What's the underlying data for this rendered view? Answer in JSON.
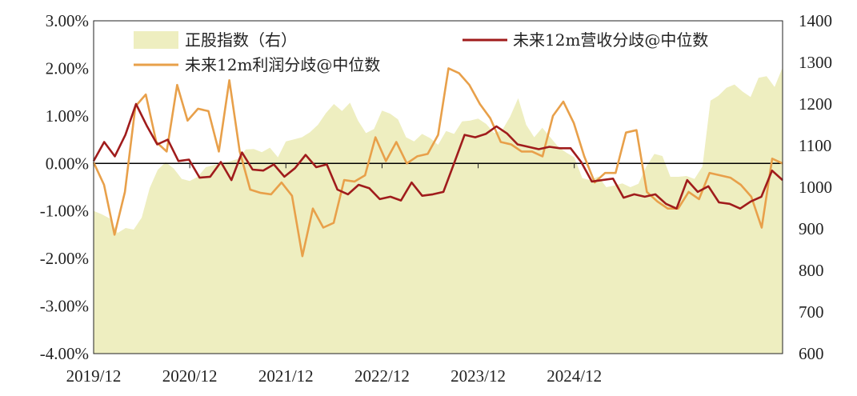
{
  "chart_data": {
    "type": "line",
    "x": {
      "start": "2019-12",
      "step_months": 1,
      "tick_labels": [
        "2019/12",
        "2020/12",
        "2021/12",
        "2022/12",
        "2023/12",
        "2024/12"
      ]
    },
    "y_left": {
      "range": [
        -0.04,
        0.03
      ],
      "tick_labels": [
        "-4.00%",
        "-3.00%",
        "-2.00%",
        "-1.00%",
        "0.00%",
        "1.00%",
        "2.00%",
        "3.00%"
      ]
    },
    "y_right": {
      "range": [
        600,
        1400
      ],
      "tick_labels": [
        "600",
        "700",
        "800",
        "900",
        "1000",
        "1100",
        "1200",
        "1300",
        "1400"
      ]
    },
    "legend": {
      "area_label": "正股指数（右）",
      "revenue_label": "未来12m营收分歧@中位数",
      "profit_label": "未来12m利润分歧@中位数"
    },
    "colors": {
      "area": "#eeeec0",
      "revenue": "#a01c1c",
      "profit": "#e8a04a",
      "zero_line": "#000000"
    },
    "series": [
      {
        "name": "正股指数（右）",
        "axis": "right",
        "kind": "area",
        "values": [
          943,
          935,
          925,
          890,
          902,
          898,
          927,
          998,
          1042,
          1060,
          1045,
          1020,
          1015,
          1025,
          1048,
          1053,
          1058,
          1062,
          1068,
          1091,
          1092,
          1084,
          1095,
          1072,
          1110,
          1115,
          1120,
          1132,
          1150,
          1178,
          1200,
          1183,
          1203,
          1160,
          1130,
          1140,
          1184,
          1177,
          1163,
          1120,
          1110,
          1128,
          1118,
          1102,
          1135,
          1128,
          1158,
          1160,
          1165,
          1152,
          1130,
          1137,
          1170,
          1214,
          1150,
          1120,
          1143,
          1120,
          1097,
          1083,
          1072,
          1022,
          1017,
          1026,
          1000,
          1004,
          1009,
          1000,
          1008,
          1050,
          1080,
          1075,
          1025,
          1025,
          1027,
          1020,
          1050,
          1208,
          1220,
          1239,
          1247,
          1230,
          1217,
          1263,
          1267,
          1241,
          1288
        ]
      },
      {
        "name": "未来12m营收分歧@中位数",
        "axis": "left",
        "kind": "line",
        "values": [
          0.0005,
          0.0045,
          0.0015,
          0.006,
          0.0125,
          0.008,
          0.004,
          0.005,
          0.0005,
          0.0008,
          -0.003,
          -0.0028,
          0.0003,
          -0.0035,
          0.0023,
          -0.0013,
          -0.0015,
          -0.0002,
          -0.0028,
          -0.001,
          0.0018,
          -0.0008,
          -0.0002,
          -0.0055,
          -0.0065,
          -0.0045,
          -0.0052,
          -0.0075,
          -0.007,
          -0.0078,
          -0.004,
          -0.0068,
          -0.0065,
          -0.006,
          0.0,
          0.006,
          0.0055,
          0.0062,
          0.0078,
          0.0063,
          0.004,
          0.0035,
          0.003,
          0.0035,
          0.0032,
          0.0032,
          0.0003,
          -0.0038,
          -0.0035,
          -0.0032,
          -0.0072,
          -0.0065,
          -0.007,
          -0.0065,
          -0.0085,
          -0.0095,
          -0.0035,
          -0.006,
          -0.0048,
          -0.0082,
          -0.0085,
          -0.0095,
          -0.008,
          -0.007,
          -0.0015,
          -0.0035
        ]
      },
      {
        "name": "未来12m利润分歧@中位数",
        "axis": "left",
        "kind": "line",
        "values": [
          0.0002,
          -0.0045,
          -0.015,
          -0.006,
          0.012,
          0.0145,
          0.0045,
          0.0025,
          0.0165,
          0.009,
          0.0115,
          0.011,
          0.0025,
          0.0175,
          0.0025,
          -0.0055,
          -0.0062,
          -0.0065,
          -0.004,
          -0.0068,
          -0.0195,
          -0.0095,
          -0.0135,
          -0.0125,
          -0.0035,
          -0.0038,
          -0.0025,
          0.0055,
          0.0005,
          0.0045,
          0.0,
          0.0015,
          0.002,
          0.006,
          0.02,
          0.019,
          0.0165,
          0.0125,
          0.0095,
          0.0045,
          0.004,
          0.0025,
          0.0025,
          0.0015,
          0.01,
          0.013,
          0.0085,
          0.0015,
          -0.004,
          -0.002,
          -0.002,
          0.0065,
          0.007,
          -0.006,
          -0.008,
          -0.0095,
          -0.0095,
          -0.006,
          -0.0075,
          -0.002,
          -0.0025,
          -0.003,
          -0.0045,
          -0.007,
          -0.0135,
          0.001,
          0.0
        ]
      }
    ]
  }
}
